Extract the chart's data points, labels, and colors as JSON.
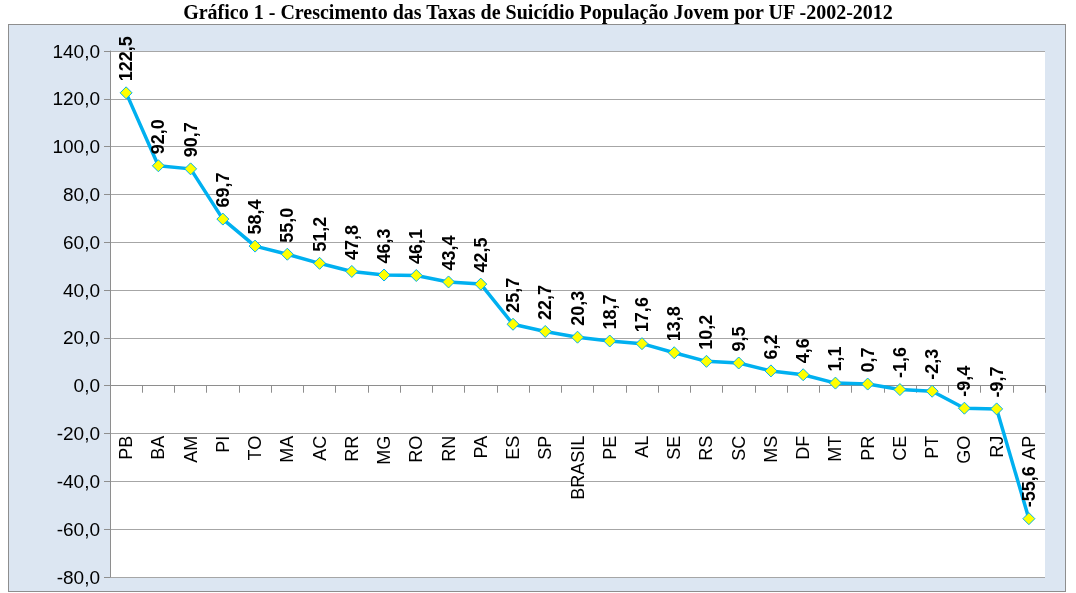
{
  "chart_data": {
    "type": "line",
    "title": "Gráfico 1 - Crescimento das Taxas de Suicídio População Jovem por UF -2002-2012",
    "categories": [
      "PB",
      "BA",
      "AM",
      "PI",
      "TO",
      "MA",
      "AC",
      "RR",
      "MG",
      "RO",
      "RN",
      "PA",
      "ES",
      "SP",
      "BRASIL",
      "PE",
      "AL",
      "SE",
      "RS",
      "SC",
      "MS",
      "DF",
      "MT",
      "PR",
      "CE",
      "PT",
      "GO",
      "RJ",
      "AP"
    ],
    "values": [
      122.5,
      92.0,
      90.7,
      69.7,
      58.4,
      55.0,
      51.2,
      47.8,
      46.3,
      46.1,
      43.4,
      42.5,
      25.7,
      22.7,
      20.3,
      18.7,
      17.6,
      13.8,
      10.2,
      9.5,
      6.2,
      4.6,
      1.1,
      0.7,
      -1.6,
      -2.3,
      -9.4,
      -9.7,
      -55.6
    ],
    "value_labels": [
      "122,5",
      "92,0",
      "90,7",
      "69,7",
      "58,4",
      "55,0",
      "51,2",
      "47,8",
      "46,3",
      "46,1",
      "43,4",
      "42,5",
      "25,7",
      "22,7",
      "20,3",
      "18,7",
      "17,6",
      "13,8",
      "10,2",
      "9,5",
      "6,2",
      "4,6",
      "1,1",
      "0,7",
      "-1,6",
      "-2,3",
      "-9,4",
      "-9,7",
      "-55,6"
    ],
    "color": "#00b0f0",
    "colors": [
      "#ffff00",
      "#ffff00",
      "#ffff00",
      "#ffff00",
      "#ffff00",
      "#ffff00",
      "#ffff00",
      "#ffff00",
      "#ffff00",
      "#ffff00",
      "#ffff00",
      "#ffff00",
      "#ffff00",
      "#ffff00",
      "#ffff00",
      "#ffff00",
      "#ffff00",
      "#ffff00",
      "#ffff00",
      "#ffff00",
      "#ffff00",
      "#ffff00",
      "#ffff00",
      "#ffff00",
      "#ffff00",
      "#ffff00",
      "#ffff00",
      "#ffff00",
      "#ffff00"
    ],
    "ylim": [
      -80,
      140
    ],
    "yticks": [
      {
        "value": -80,
        "label": "-80,0"
      },
      {
        "value": -60,
        "label": "-60,0"
      },
      {
        "value": -40,
        "label": "-40,0"
      },
      {
        "value": -20,
        "label": "-20,0"
      },
      {
        "value": 0,
        "label": "0,0"
      },
      {
        "value": 20,
        "label": "20,0"
      },
      {
        "value": 40,
        "label": "40,0"
      },
      {
        "value": 60,
        "label": "60,0"
      },
      {
        "value": 80,
        "label": "80,0"
      },
      {
        "value": 100,
        "label": "100,0"
      },
      {
        "value": 120,
        "label": "120,0"
      },
      {
        "value": 140,
        "label": "140,0"
      }
    ],
    "grid": "y",
    "marker": "diamond",
    "line_style": "solid"
  }
}
